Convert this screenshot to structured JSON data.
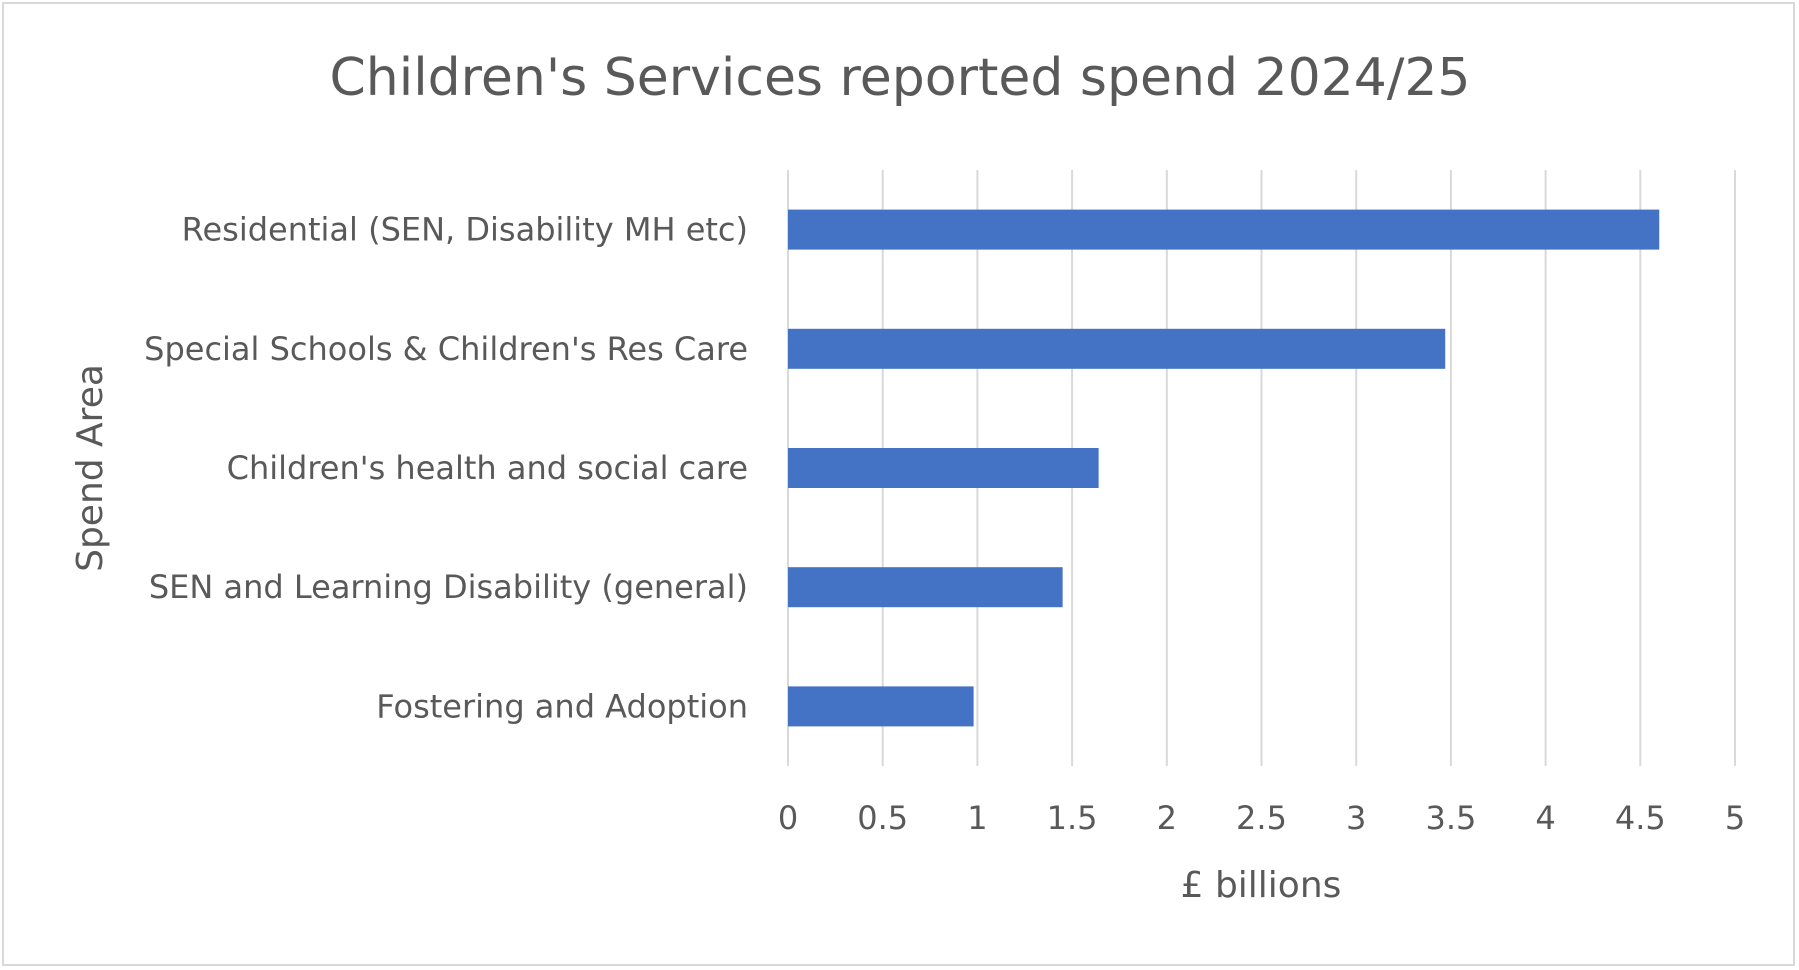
{
  "chart_data": {
    "type": "bar",
    "orientation": "horizontal",
    "title": "Children's Services reported spend 2024/25",
    "xlabel": "£ billions",
    "ylabel": "Spend Area",
    "categories": [
      "Residential (SEN, Disability MH etc)",
      "Special Schools & Children's Res Care",
      "Children's health and social care",
      "SEN and Learning Disability (general)",
      "Fostering and Adoption"
    ],
    "values": [
      4.6,
      3.47,
      1.64,
      1.45,
      0.98
    ],
    "xlim": [
      0,
      5
    ],
    "xticks": [
      "0",
      "0.5",
      "1",
      "1.5",
      "2",
      "2.5",
      "3",
      "3.5",
      "4",
      "4.5",
      "5"
    ],
    "grid": true,
    "legend": "none",
    "colors": {
      "bar": "#4472C4",
      "grid": "#d9d9d9",
      "text": "#595959"
    }
  }
}
